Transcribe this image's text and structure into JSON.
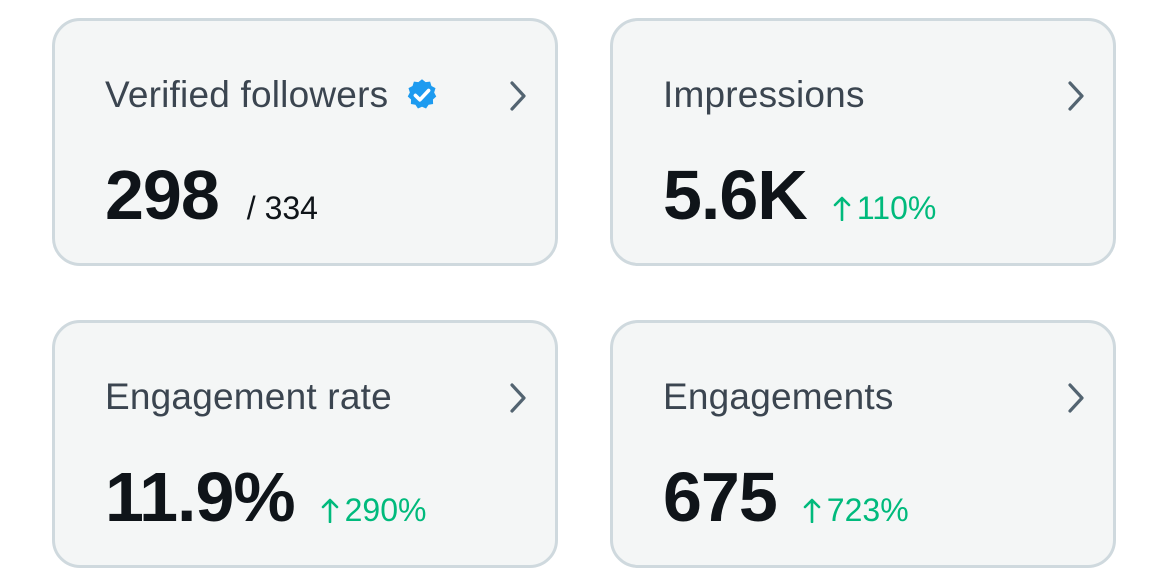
{
  "colors": {
    "positive": "#00ba7c",
    "verified": "#1d9bf0",
    "border": "#cfd9de",
    "card_bg": "#f4f6f6"
  },
  "cards": [
    {
      "title": "Verified followers",
      "icon": "verified-badge-icon",
      "value": "298",
      "secondary": "/ 334"
    },
    {
      "title": "Impressions",
      "value": "5.6K",
      "change": "110%",
      "change_direction": "up"
    },
    {
      "title": "Engagement rate",
      "value": "11.9%",
      "change": "290%",
      "change_direction": "up"
    },
    {
      "title": "Engagements",
      "value": "675",
      "change": "723%",
      "change_direction": "up"
    }
  ]
}
